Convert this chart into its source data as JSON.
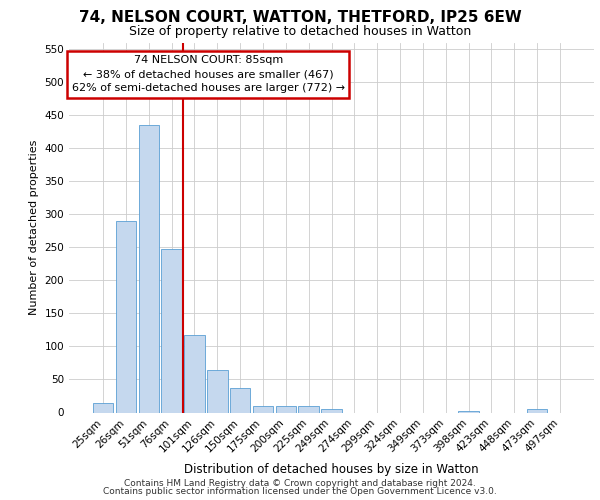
{
  "title1": "74, NELSON COURT, WATTON, THETFORD, IP25 6EW",
  "title2": "Size of property relative to detached houses in Watton",
  "xlabel": "Distribution of detached houses by size in Watton",
  "ylabel": "Number of detached properties",
  "footer1": "Contains HM Land Registry data © Crown copyright and database right 2024.",
  "footer2": "Contains public sector information licensed under the Open Government Licence v3.0.",
  "annotation_line1": "74 NELSON COURT: 85sqm",
  "annotation_line2": "← 38% of detached houses are smaller (467)",
  "annotation_line3": "62% of semi-detached houses are larger (772) →",
  "bar_categories": [
    "25sqm",
    "26sqm",
    "51sqm",
    "76sqm",
    "101sqm",
    "126sqm",
    "150sqm",
    "175sqm",
    "200sqm",
    "225sqm",
    "249sqm",
    "274sqm",
    "299sqm",
    "324sqm",
    "349sqm",
    "373sqm",
    "398sqm",
    "423sqm",
    "448sqm",
    "473sqm",
    "497sqm"
  ],
  "bar_values": [
    15,
    290,
    435,
    248,
    118,
    65,
    37,
    10,
    10,
    10,
    5,
    0,
    0,
    0,
    0,
    0,
    3,
    0,
    0,
    5,
    0
  ],
  "bar_color": "#c5d8ee",
  "bar_edge_color": "#5a9fd4",
  "vline_color": "#cc0000",
  "vline_index": 3.5,
  "annotation_box_edgecolor": "#cc0000",
  "grid_color": "#cccccc",
  "bg_color": "#ffffff",
  "ylim_max": 560,
  "yticks": [
    0,
    50,
    100,
    150,
    200,
    250,
    300,
    350,
    400,
    450,
    500,
    550
  ],
  "title1_fontsize": 11,
  "title2_fontsize": 9,
  "ylabel_fontsize": 8,
  "xlabel_fontsize": 8.5,
  "tick_fontsize": 7.5,
  "footer_fontsize": 6.5,
  "ann_fontsize": 8
}
